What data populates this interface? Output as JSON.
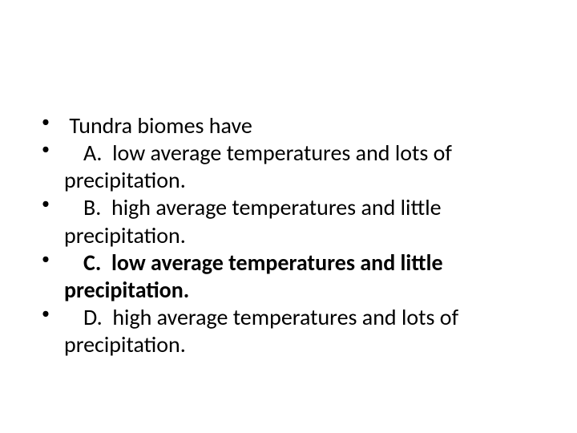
{
  "slide": {
    "background_color": "#ffffff",
    "text_color": "#000000",
    "font_family": "Calibri, Arial, sans-serif",
    "font_size": 28,
    "line_height": 1.22,
    "bullet_char": "•",
    "question": "Tundra biomes have",
    "options": [
      {
        "letter": "A.",
        "line1": "low average temperatures and lots of",
        "line2": "precipitation.",
        "bold": false
      },
      {
        "letter": "B.",
        "line1": "high average temperatures and little",
        "line2": "precipitation.",
        "bold": false
      },
      {
        "letter": "C.",
        "line1": "low average temperatures and little",
        "line2": "precipitation.",
        "bold": true
      },
      {
        "letter": "D.",
        "line1": "high average temperatures and lots of",
        "line2": "precipitation.",
        "bold": false
      }
    ]
  }
}
